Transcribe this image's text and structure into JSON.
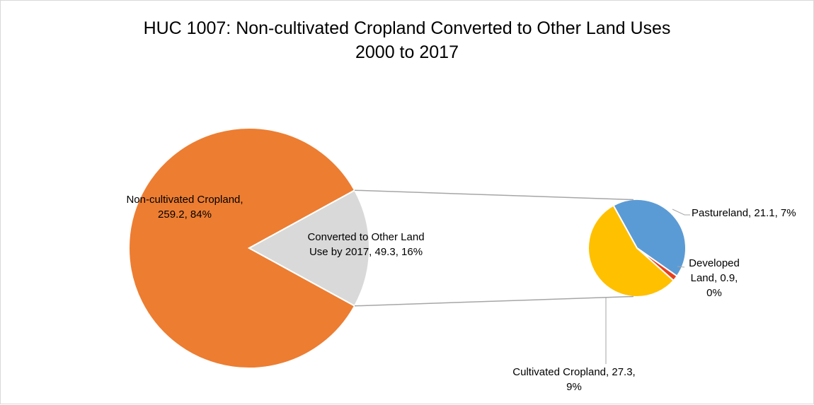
{
  "chart_data": {
    "type": "pie",
    "title": "HUC 1007: Non-cultivated Cropland Converted to Other Land Uses",
    "subtitle": "2000 to 2017",
    "main_pie": {
      "slices": [
        {
          "name": "Non-cultivated Cropland",
          "value": 259.2,
          "percent": "84%",
          "color": "#ED7D31",
          "label_lines": [
            "Non-cultivated Cropland,",
            "259.2, 84%"
          ]
        },
        {
          "name": "Converted to Other Land Use by 2017",
          "value": 49.3,
          "percent": "16%",
          "color": "#D9D9D9",
          "label_lines": [
            "Converted to Other Land",
            "Use by 2017, 49.3, 16%"
          ]
        }
      ]
    },
    "secondary_pie": {
      "slices": [
        {
          "name": "Pastureland",
          "value": 21.1,
          "percent": "7%",
          "color": "#5B9BD5",
          "label_lines": [
            "Pastureland, 21.1, 7%"
          ]
        },
        {
          "name": "Developed Land",
          "value": 0.9,
          "percent": "0%",
          "color": "#E8401C",
          "label_lines": [
            "Developed",
            "Land, 0.9,",
            "0%"
          ]
        },
        {
          "name": "Cultivated Cropland",
          "value": 27.3,
          "percent": "9%",
          "color": "#FFC000",
          "label_lines": [
            "Cultivated Cropland, 27.3,",
            "9%"
          ]
        }
      ]
    },
    "connector_color": "#A6A6A6",
    "legend": "none"
  }
}
